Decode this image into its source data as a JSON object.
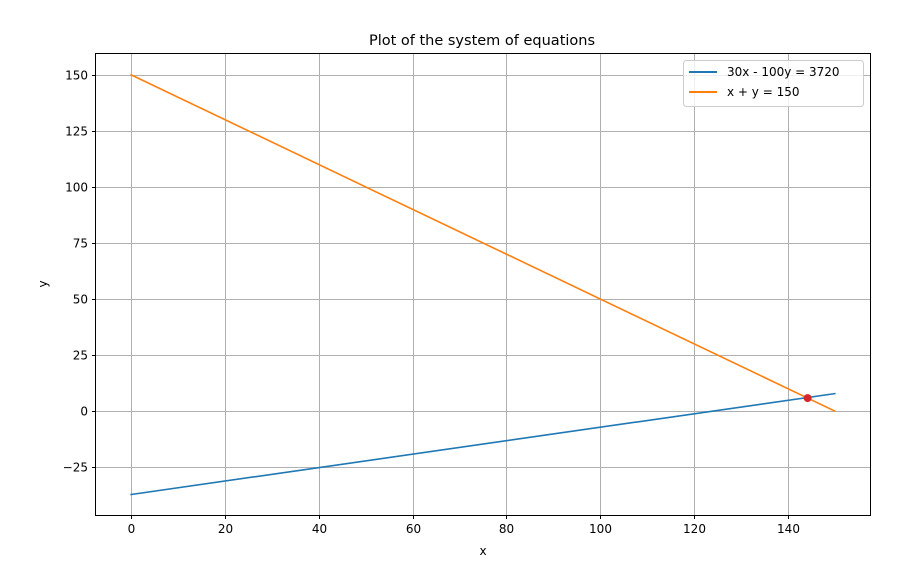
{
  "chart_data": {
    "type": "line",
    "title": "Plot of the system of equations",
    "xlabel": "x",
    "ylabel": "y",
    "xlim": [
      -7.5,
      157.5
    ],
    "ylim": [
      -46.35,
      159.3
    ],
    "xticks": [
      0,
      20,
      40,
      60,
      80,
      100,
      120,
      140
    ],
    "yticks": [
      -25,
      0,
      25,
      50,
      75,
      100,
      125,
      150
    ],
    "xtick_labels": [
      "0",
      "20",
      "40",
      "60",
      "80",
      "100",
      "120",
      "140"
    ],
    "ytick_labels": [
      "−25",
      "0",
      "25",
      "50",
      "75",
      "100",
      "125",
      "150"
    ],
    "grid": true,
    "legend_position": "top-right",
    "series": [
      {
        "name": "30x - 100y = 3720",
        "color": "#1f77b4",
        "x": [
          0,
          150
        ],
        "y": [
          -37.2,
          7.8
        ]
      },
      {
        "name": "x + y = 150",
        "color": "#ff7f0e",
        "x": [
          0,
          150
        ],
        "y": [
          150,
          0
        ]
      }
    ],
    "points": [
      {
        "x": 144.2,
        "y": 5.8,
        "color": "#d62728"
      }
    ]
  }
}
